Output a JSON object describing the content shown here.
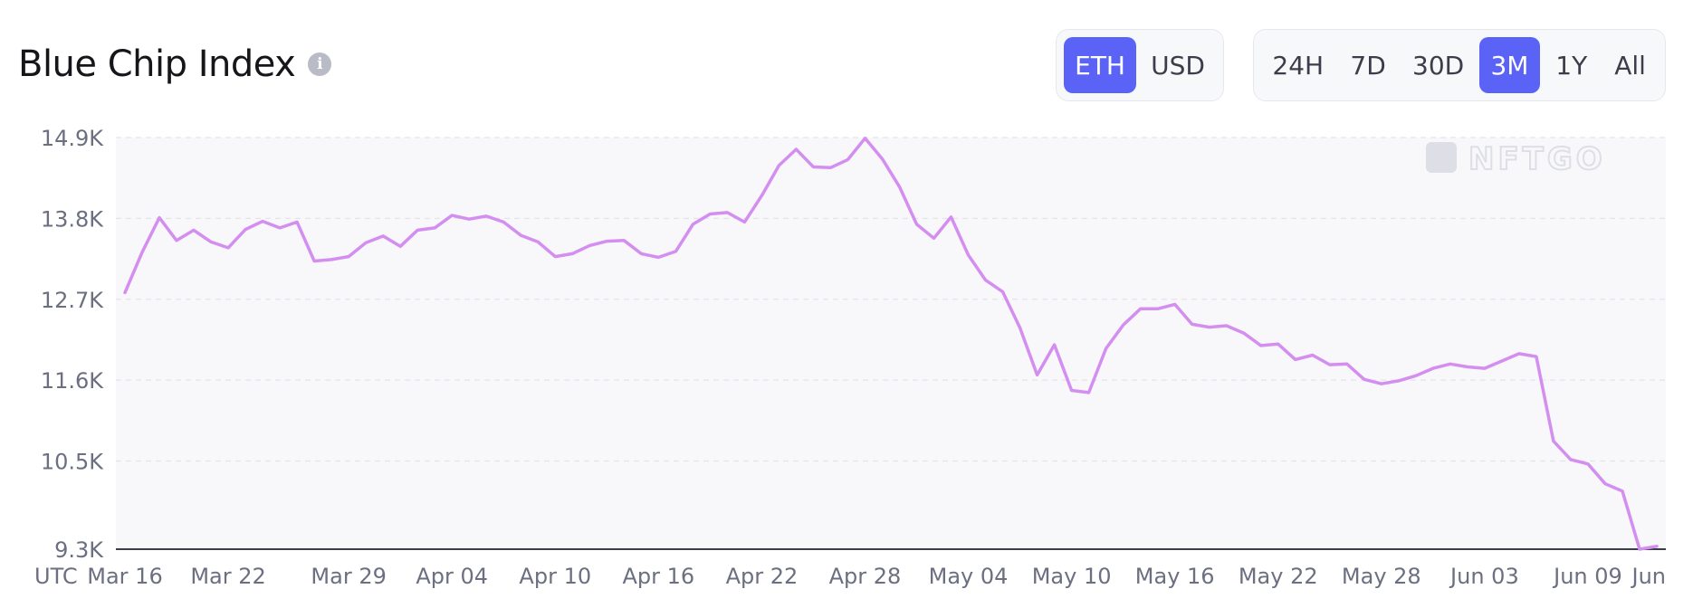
{
  "header": {
    "title": "Blue Chip Index",
    "info_icon": "info-icon"
  },
  "currency_toggle": {
    "options": [
      "ETH",
      "USD"
    ],
    "selected": "ETH"
  },
  "range_toggle": {
    "options": [
      "24H",
      "7D",
      "30D",
      "3M",
      "1Y",
      "All"
    ],
    "selected": "3M"
  },
  "colors": {
    "accent": "#5a63f5",
    "line": "#d48ef0",
    "plot_bg": "#f8f8fb"
  },
  "watermark": "NFTGO",
  "chart_data": {
    "type": "line",
    "title": "",
    "xlabel": "",
    "ylabel": "",
    "timezone_label": "UTC",
    "ylim": [
      9300,
      14900
    ],
    "grid": true,
    "y_ticks": [
      "14.9K",
      "13.8K",
      "12.7K",
      "11.6K",
      "10.5K",
      "9.3K"
    ],
    "y_tick_values": [
      14900,
      13800,
      12700,
      11600,
      10500,
      9300
    ],
    "x_ticks": [
      "Mar 16",
      "Mar 22",
      "Mar 29",
      "Apr 04",
      "Apr 10",
      "Apr 16",
      "Apr 22",
      "Apr 28",
      "May 04",
      "May 10",
      "May 16",
      "May 22",
      "May 28",
      "Jun 03",
      "Jun 09",
      "Jun"
    ],
    "x_tick_days": [
      0,
      6,
      13,
      19,
      25,
      31,
      37,
      43,
      49,
      55,
      61,
      67,
      73,
      79,
      85,
      89
    ],
    "x_start": "Mar 16",
    "series": [
      {
        "values": [
          12790,
          13340,
          13810,
          13500,
          13640,
          13480,
          13400,
          13650,
          13760,
          13670,
          13750,
          13220,
          13240,
          13280,
          13470,
          13560,
          13420,
          13640,
          13670,
          13840,
          13790,
          13830,
          13750,
          13570,
          13480,
          13280,
          13320,
          13430,
          13490,
          13500,
          13320,
          13270,
          13350,
          13720,
          13860,
          13880,
          13750,
          14110,
          14520,
          14740,
          14500,
          14490,
          14600,
          14890,
          14610,
          14230,
          13720,
          13530,
          13820,
          13300,
          12960,
          12800,
          12310,
          11670,
          12080,
          11460,
          11430,
          12030,
          12350,
          12570,
          12570,
          12630,
          12360,
          12320,
          12340,
          12240,
          12070,
          12090,
          11880,
          11940,
          11810,
          11820,
          11610,
          11550,
          11590,
          11660,
          11760,
          11820,
          11780,
          11760,
          11860,
          11960,
          11920,
          10770,
          10520,
          10460,
          10190,
          10090,
          9300,
          9340
        ]
      }
    ]
  }
}
